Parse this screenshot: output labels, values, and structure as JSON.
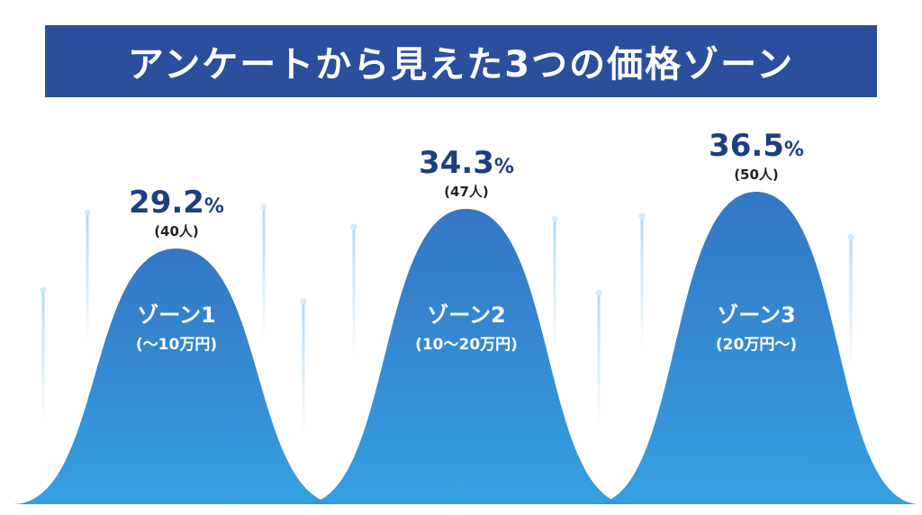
{
  "title": "アンケートから見えた3つの価格ゾーン",
  "colors": {
    "title_bg": "#2b4f9c",
    "mountain_top": "#2a6fc1",
    "mountain_bottom": "#2a9be0",
    "value_text": "#1c3f7e",
    "streak": "#a9d4f2"
  },
  "chart_data": {
    "type": "area",
    "categories": [
      "ゾーン1",
      "ゾーン2",
      "ゾーン3"
    ],
    "ranges": [
      "(〜10万円)",
      "(10〜20万円)",
      "(20万円〜)"
    ],
    "values": [
      29.2,
      34.3,
      36.5
    ],
    "value_suffix": "%",
    "counts": [
      "(40人)",
      "(47人)",
      "(50人)"
    ]
  }
}
